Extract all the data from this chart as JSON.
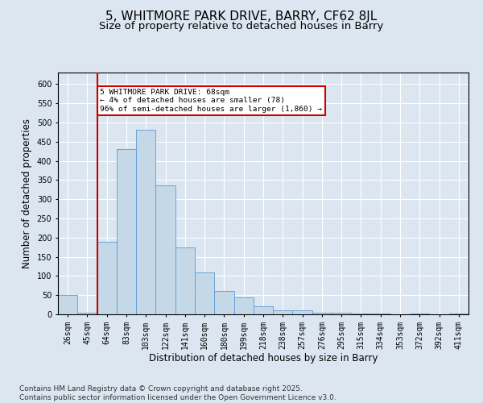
{
  "title1": "5, WHITMORE PARK DRIVE, BARRY, CF62 8JL",
  "title2": "Size of property relative to detached houses in Barry",
  "xlabel": "Distribution of detached houses by size in Barry",
  "ylabel": "Number of detached properties",
  "categories": [
    "26sqm",
    "45sqm",
    "64sqm",
    "83sqm",
    "103sqm",
    "122sqm",
    "141sqm",
    "160sqm",
    "180sqm",
    "199sqm",
    "218sqm",
    "238sqm",
    "257sqm",
    "276sqm",
    "295sqm",
    "315sqm",
    "334sqm",
    "353sqm",
    "372sqm",
    "392sqm",
    "411sqm"
  ],
  "values": [
    50,
    5,
    190,
    430,
    480,
    335,
    175,
    110,
    60,
    45,
    20,
    10,
    10,
    5,
    5,
    3,
    2,
    1,
    3,
    1,
    3
  ],
  "bar_color": "#c5d8e8",
  "bar_edge_color": "#5b9bd5",
  "vline_index": 2,
  "vline_color": "#cc0000",
  "annotation_text": "5 WHITMORE PARK DRIVE: 68sqm\n← 4% of detached houses are smaller (78)\n96% of semi-detached houses are larger (1,860) →",
  "annotation_box_color": "#ffffff",
  "annotation_box_edge": "#cc0000",
  "ylim": [
    0,
    630
  ],
  "yticks": [
    0,
    50,
    100,
    150,
    200,
    250,
    300,
    350,
    400,
    450,
    500,
    550,
    600
  ],
  "background_color": "#dce6f1",
  "plot_background": "#dce6f1",
  "footer": "Contains HM Land Registry data © Crown copyright and database right 2025.\nContains public sector information licensed under the Open Government Licence v3.0.",
  "title1_fontsize": 11,
  "title2_fontsize": 9.5,
  "tick_fontsize": 7,
  "label_fontsize": 8.5,
  "footer_fontsize": 6.5
}
